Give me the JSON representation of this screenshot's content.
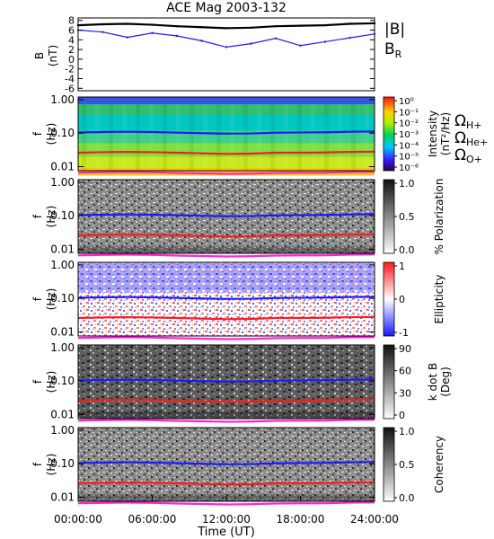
{
  "title": "ACE Mag 2003-132",
  "xlabel": "Time (UT)",
  "colors": {
    "proton": "#1a1aff",
    "helium": "#ff1a1a",
    "oxygen": "#ff22dd",
    "btotal": "#000000",
    "bradial": "#1a1aff"
  },
  "chart_data": [
    {
      "type": "line",
      "panel": "magnetic-field",
      "ylabel": "B",
      "yunit": "(nT)",
      "ylim": [
        -6.5,
        8.5
      ],
      "ticks": [
        "8",
        "6",
        "4",
        "2",
        "0",
        "-2",
        "-4",
        "-6"
      ],
      "tick_values": [
        8,
        6,
        4,
        2,
        0,
        -2,
        -4,
        -6
      ],
      "legend": [
        {
          "name": "|B|",
          "color": "#000000"
        },
        {
          "name": "B",
          "sub": "R",
          "color": "#1a1aff"
        }
      ],
      "x_hours": [
        0,
        2,
        4,
        6,
        8,
        10,
        12,
        14,
        16,
        18,
        20,
        22,
        24
      ],
      "series": [
        {
          "name": "|B|",
          "values": [
            7.0,
            7.2,
            7.3,
            7.1,
            6.8,
            6.6,
            6.4,
            6.5,
            6.8,
            6.9,
            7.0,
            7.3,
            7.4
          ]
        },
        {
          "name": "B_R",
          "values": [
            6.0,
            5.6,
            4.5,
            5.4,
            4.8,
            3.8,
            2.5,
            3.2,
            4.3,
            2.8,
            3.6,
            4.4,
            5.2
          ]
        }
      ]
    },
    {
      "type": "heatmap",
      "panel": "intensity",
      "ylabel": "f",
      "yunit": "(Hz)",
      "yticks": [
        "1.00",
        "0.10",
        "0.01"
      ],
      "colorbar_label": "Intensity",
      "colorbar_unit": "(nT²/Hz)",
      "colorbar_ticks": [
        "10⁰",
        "10⁻¹",
        "10⁻²",
        "10⁻³",
        "10⁻⁴",
        "10⁻⁵",
        "10⁻⁶"
      ],
      "gyro_legend": [
        {
          "symbol": "Ω",
          "sub": "H+",
          "color": "#1a1aff"
        },
        {
          "symbol": "Ω",
          "sub": "He+",
          "color": "#ff1a1a"
        },
        {
          "symbol": "Ω",
          "sub": "O+",
          "color": "#ff22dd"
        }
      ]
    },
    {
      "type": "heatmap",
      "panel": "polarization",
      "ylabel": "f",
      "yunit": "(Hz)",
      "yticks": [
        "1.00",
        "0.10",
        "0.01"
      ],
      "colorbar_label": "% Polarization",
      "colorbar_ticks": [
        "1.0",
        "0.5",
        "0.0"
      ]
    },
    {
      "type": "heatmap",
      "panel": "ellipticity",
      "ylabel": "f",
      "yunit": "(Hz)",
      "yticks": [
        "1.00",
        "0.10",
        "0.01"
      ],
      "colorbar_label": "Ellipticity",
      "colorbar_ticks": [
        "1",
        "0",
        "-1"
      ]
    },
    {
      "type": "heatmap",
      "panel": "kdotb",
      "ylabel": "f",
      "yunit": "(Hz)",
      "yticks": [
        "1.00",
        "0.10",
        "0.01"
      ],
      "colorbar_label": "k dot B",
      "colorbar_unit": "(Deg)",
      "colorbar_ticks": [
        "90",
        "60",
        "30",
        "0"
      ]
    },
    {
      "type": "heatmap",
      "panel": "coherency",
      "ylabel": "f",
      "yunit": "(Hz)",
      "yticks": [
        "1.00",
        "0.10",
        "0.01"
      ],
      "colorbar_label": "Coherency",
      "colorbar_ticks": [
        "1.0",
        "0.5",
        "0.0"
      ]
    }
  ],
  "gyrofrequency_hz": {
    "x_hours": [
      0,
      2,
      4,
      6,
      8,
      10,
      12,
      14,
      16,
      18,
      20,
      22,
      24
    ],
    "H+": [
      0.105,
      0.108,
      0.11,
      0.108,
      0.104,
      0.1,
      0.097,
      0.098,
      0.103,
      0.105,
      0.106,
      0.11,
      0.112
    ],
    "He+": [
      0.026,
      0.027,
      0.0275,
      0.027,
      0.026,
      0.025,
      0.024,
      0.0245,
      0.026,
      0.026,
      0.0265,
      0.0275,
      0.028
    ],
    "O+": [
      0.0066,
      0.0068,
      0.0069,
      0.0068,
      0.0065,
      0.0063,
      0.0061,
      0.0062,
      0.0065,
      0.0066,
      0.0066,
      0.0069,
      0.007
    ]
  },
  "x_ticks": [
    "00:00:00",
    "06:00:00",
    "12:00:00",
    "18:00:00",
    "24:00:00"
  ]
}
